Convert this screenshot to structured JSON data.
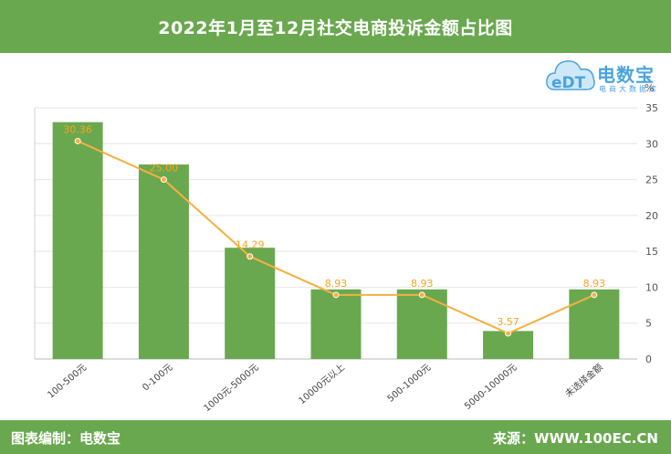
{
  "header": {
    "title": "2022年1月至12月社交电商投诉金额占比图"
  },
  "footer": {
    "left": "图表编制：电数宝",
    "right": "来源：WWW.100EC.CN"
  },
  "logo": {
    "brand": "电数宝",
    "slogan": "电商大数据库",
    "mark": "eDT"
  },
  "colors": {
    "bar": "#6aa84f",
    "line": "#f5b041",
    "label": "#f5a623",
    "grid": "#e6e6e6"
  },
  "chart_data": {
    "type": "bar",
    "categories": [
      "100-500元",
      "0-100元",
      "1000元-5000元",
      "10000元以上",
      "500-1000元",
      "5000-10000元",
      "未选择金额"
    ],
    "series": [
      {
        "type": "bar",
        "values": [
          33,
          27.1,
          15.5,
          9.7,
          9.7,
          3.9,
          9.7
        ]
      },
      {
        "type": "line",
        "values": [
          30.36,
          25.0,
          14.29,
          8.93,
          8.93,
          3.57,
          8.93
        ],
        "labels": [
          "30.36",
          "25.00",
          "14.29",
          "8.93",
          "8.93",
          "3.57",
          "8.93"
        ]
      }
    ],
    "ylabel": "%",
    "ylim": [
      0,
      35
    ],
    "yticks": [
      0,
      5,
      10,
      15,
      20,
      25,
      30,
      35
    ],
    "grid": true,
    "y_axis_position": "right"
  }
}
